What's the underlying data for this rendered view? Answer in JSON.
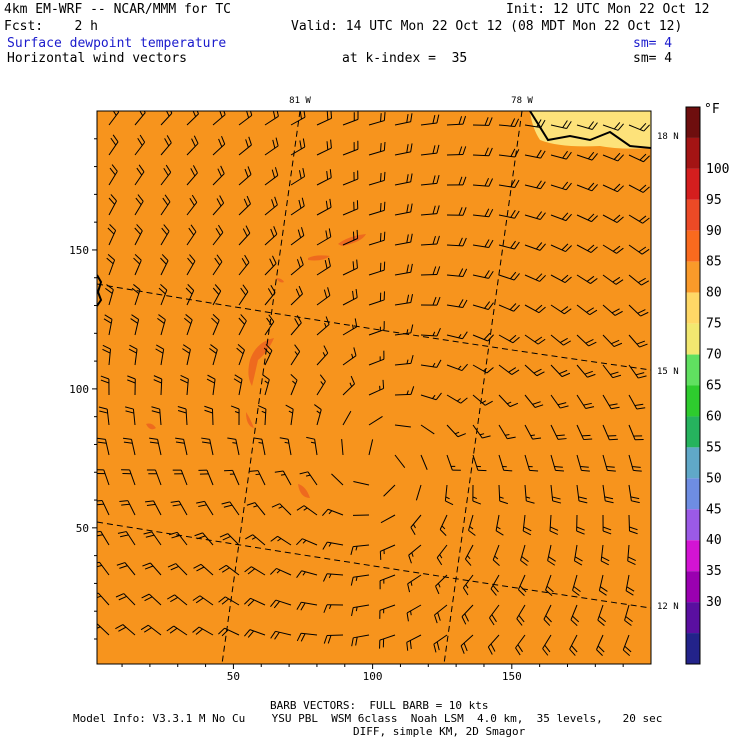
{
  "header": {
    "model": "4km EM-WRF -- NCAR/MMM for TC",
    "init": "Init: 12 UTC Mon 22 Oct 12",
    "fcst": "Fcst:    2 h",
    "valid": "Valid: 14 UTC Mon 22 Oct 12 (08 MDT Mon 22 Oct 12)",
    "field1": "Surface dewpoint temperature",
    "field2": "Horizontal wind vectors",
    "kindex": "at k-index =  35",
    "sm1": "sm= 4",
    "sm2": "sm= 4"
  },
  "footer": {
    "barb": "BARB VECTORS:  FULL BARB = 10 kts",
    "info": "Model Info: V3.3.1 M No Cu    YSU PBL  WSM 6class  Noah LSM  4.0 km,  35 levels,   20 sec",
    "diff": "DIFF, simple KM, 2D Smagor"
  },
  "chart_data": {
    "type": "heatmap",
    "title": "Surface dewpoint temperature",
    "xlim": [
      1,
      200
    ],
    "ylim": [
      1,
      200
    ],
    "x_ticks": [
      50,
      100,
      150
    ],
    "y_ticks": [
      50,
      100,
      150
    ],
    "lon_labels": [
      "81 W",
      "78 W"
    ],
    "lat_labels": [
      "18 N",
      "15 N",
      "12 N"
    ],
    "background_value_F": "80-85",
    "colorbar": {
      "unit": "°F",
      "labels": [
        "30",
        "35",
        "40",
        "45",
        "50",
        "55",
        "60",
        "65",
        "70",
        "75",
        "80",
        "85",
        "90",
        "95",
        "100"
      ],
      "colors": [
        "#23238a",
        "#5a0fa0",
        "#9a00b0",
        "#d314d3",
        "#9b5ae6",
        "#6e8de2",
        "#60a8c8",
        "#26b35e",
        "#2ecc2e",
        "#60e060",
        "#f2e870",
        "#ffd866",
        "#fa9a2a",
        "#fa6a1e",
        "#ec4a26",
        "#d41e1e",
        "#a31414",
        "#6e0e0e"
      ],
      "colors_note": ""
    },
    "palette": {
      "bg": "#f7941d",
      "dark": "#ee6a1e",
      "light": "#fde27a"
    },
    "regions": [
      {
        "value": "85-90",
        "desc": "small darker patches",
        "cx": [
          92,
          56,
          20,
          72,
          55
        ],
        "cy": [
          152,
          110,
          87,
          62,
          88
        ]
      },
      {
        "value": "75-80",
        "desc": "lighter area near top-right corner",
        "cx": [
          188
        ],
        "cy": [
          193
        ]
      }
    ],
    "vectors": {
      "name": "Horizontal wind vectors",
      "units": "kts",
      "full_barb": 10,
      "center": [
        103,
        74
      ]
    }
  }
}
